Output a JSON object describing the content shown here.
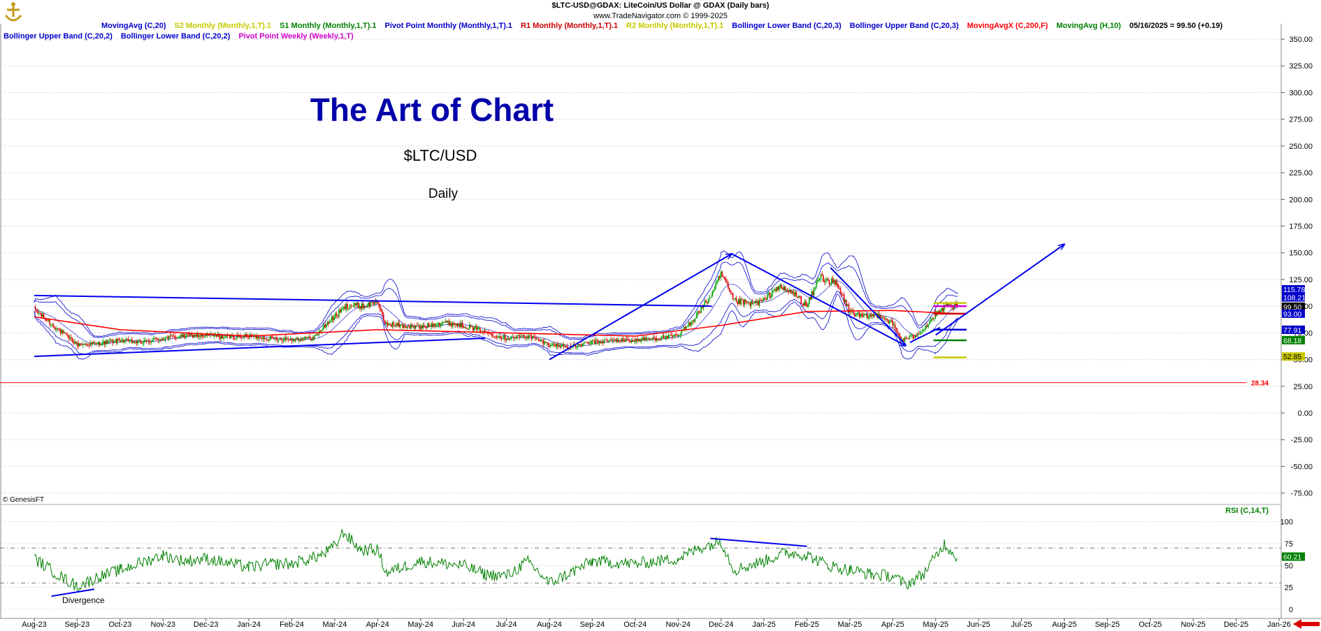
{
  "header": {
    "title": "$LTC-USD@GDAX:  LiteCoin/US Dollar @ GDAX  (Daily bars)",
    "subtitle": "www.TradeNavigator.com © 1999-2025"
  },
  "legend_row1": [
    {
      "text": "MovingAvg (C,20)",
      "color": "#0000cc"
    },
    {
      "text": "S2 Monthly (Monthly,1,T).1",
      "color": "#c8c800"
    },
    {
      "text": "S1 Monthly (Monthly,1,T).1",
      "color": "#008000"
    },
    {
      "text": "Pivot Point Monthly (Monthly,1,T).1",
      "color": "#0000cc"
    },
    {
      "text": "R1 Monthly (Monthly,1,T).1",
      "color": "#cc0000"
    },
    {
      "text": "R2 Monthly (Monthly,1,T).1",
      "color": "#c8c800"
    },
    {
      "text": "Bollinger Lower Band (C,20,3)",
      "color": "#0000cc"
    },
    {
      "text": "Bollinger Upper Band (C,20,3)",
      "color": "#0000cc"
    },
    {
      "text": "MovingAvgX (C,200,F)",
      "color": "#ff0000"
    },
    {
      "text": "MovingAvg (H,10)",
      "color": "#008000"
    },
    {
      "text": "05/16/2025 = 99.50 (+0.19)",
      "color": "#000000"
    }
  ],
  "legend_row2": [
    {
      "text": "Bollinger Upper Band (C,20,2)",
      "color": "#0000cc"
    },
    {
      "text": "Bollinger Lower Band (C,20,2)",
      "color": "#0000cc"
    },
    {
      "text": "Pivot Point Weekly (Weekly,1,T)",
      "color": "#cc00cc"
    }
  ],
  "annotations": {
    "main_title": "The Art of Chart",
    "symbol": "$LTC/USD",
    "timeframe": "Daily",
    "divergence": "Divergence",
    "copyright": "© GenesisFT",
    "support_label": "28.34",
    "rsi_label": "RSI (C,14,T)"
  },
  "colors": {
    "up_bar": "#00a000",
    "down_bar": "#e00000",
    "bollinger": "#0000cc",
    "ma200": "#ff0000",
    "trendline": "#0000ee",
    "rsi": "#008000",
    "support": "#ff0000"
  },
  "chart_data": {
    "type": "candlestick",
    "x_categories": [
      "Aug-23",
      "Sep-23",
      "Oct-23",
      "Nov-23",
      "Dec-23",
      "Jan-24",
      "Feb-24",
      "Mar-24",
      "Apr-24",
      "May-24",
      "Jun-24",
      "Jul-24",
      "Aug-24",
      "Sep-24",
      "Oct-24",
      "Nov-24",
      "Dec-24",
      "Jan-25",
      "Feb-25",
      "Mar-25",
      "Apr-25",
      "May-25",
      "Jun-25",
      "Jul-25",
      "Aug-25",
      "Sep-25",
      "Oct-25",
      "Nov-25",
      "Dec-25",
      "Jan-26"
    ],
    "price_axis": {
      "ylim": [
        -87,
        365
      ],
      "ticks": [
        "350.00",
        "325.00",
        "300.00",
        "275.00",
        "250.00",
        "225.00",
        "200.00",
        "175.00",
        "150.00",
        "125.00",
        "100.00",
        "75.00",
        "50.00",
        "25.00",
        "0.00",
        "-25.00",
        "-50.00",
        "-75.00"
      ]
    },
    "rsi_axis": {
      "ylim": [
        0,
        100
      ],
      "ticks": [
        "100",
        "75",
        "50",
        "25",
        "0"
      ],
      "reference_lines": [
        70,
        30
      ]
    },
    "price_anchors": [
      [
        "Aug-23",
        0.0,
        97
      ],
      [
        "Aug-23",
        0.5,
        80
      ],
      [
        "Sep-23",
        0.0,
        64
      ],
      [
        "Sep-23",
        0.5,
        65
      ],
      [
        "Oct-23",
        0.0,
        68
      ],
      [
        "Oct-23",
        0.5,
        66
      ],
      [
        "Nov-23",
        0.0,
        70
      ],
      [
        "Nov-23",
        0.5,
        72
      ],
      [
        "Dec-23",
        0.0,
        73
      ],
      [
        "Dec-23",
        0.5,
        71
      ],
      [
        "Jan-24",
        0.0,
        72
      ],
      [
        "Jan-24",
        0.5,
        70
      ],
      [
        "Feb-24",
        0.0,
        69
      ],
      [
        "Feb-24",
        0.5,
        70
      ],
      [
        "Feb-24",
        0.85,
        85
      ],
      [
        "Mar-24",
        0.3,
        101
      ],
      [
        "Mar-24",
        0.7,
        100
      ],
      [
        "Apr-24",
        0.0,
        105
      ],
      [
        "Apr-24",
        0.15,
        84
      ],
      [
        "Apr-24",
        0.5,
        82
      ],
      [
        "May-24",
        0.0,
        80
      ],
      [
        "May-24",
        0.5,
        85
      ],
      [
        "Jun-24",
        0.0,
        82
      ],
      [
        "Jun-24",
        0.5,
        76
      ],
      [
        "Jul-24",
        0.0,
        70
      ],
      [
        "Jul-24",
        0.5,
        72
      ],
      [
        "Aug-24",
        0.0,
        64
      ],
      [
        "Aug-24",
        0.5,
        62
      ],
      [
        "Sep-24",
        0.0,
        66
      ],
      [
        "Sep-24",
        0.5,
        68
      ],
      [
        "Oct-24",
        0.0,
        68
      ],
      [
        "Oct-24",
        0.5,
        70
      ],
      [
        "Nov-24",
        0.0,
        72
      ],
      [
        "Nov-24",
        0.4,
        90
      ],
      [
        "Nov-24",
        0.8,
        112
      ],
      [
        "Dec-24",
        0.0,
        130
      ],
      [
        "Dec-24",
        0.3,
        105
      ],
      [
        "Dec-24",
        0.7,
        102
      ],
      [
        "Jan-25",
        0.0,
        105
      ],
      [
        "Jan-25",
        0.3,
        118
      ],
      [
        "Jan-25",
        0.7,
        112
      ],
      [
        "Feb-25",
        0.0,
        100
      ],
      [
        "Feb-25",
        0.3,
        128
      ],
      [
        "Feb-25",
        0.7,
        120
      ],
      [
        "Mar-25",
        0.0,
        95
      ],
      [
        "Mar-25",
        0.3,
        90
      ],
      [
        "Mar-25",
        0.7,
        92
      ],
      [
        "Apr-25",
        0.0,
        83
      ],
      [
        "Apr-25",
        0.2,
        68
      ],
      [
        "Apr-25",
        0.5,
        72
      ],
      [
        "Apr-25",
        0.8,
        82
      ],
      [
        "May-25",
        0.0,
        92
      ],
      [
        "May-25",
        0.25,
        100
      ],
      [
        "May-25",
        0.5,
        99.5
      ]
    ],
    "ma200_anchors": [
      [
        "Aug-23",
        0.0,
        90
      ],
      [
        "Oct-23",
        0.0,
        78
      ],
      [
        "Jan-24",
        0.0,
        72
      ],
      [
        "Apr-24",
        0.0,
        78
      ],
      [
        "Jul-24",
        0.0,
        75
      ],
      [
        "Oct-24",
        0.0,
        72
      ],
      [
        "Dec-24",
        0.0,
        82
      ],
      [
        "Feb-25",
        0.0,
        95
      ],
      [
        "Apr-25",
        0.0,
        96
      ],
      [
        "May-25",
        0.5,
        93
      ]
    ],
    "rsi_anchors": [
      [
        "Aug-23",
        0.0,
        58
      ],
      [
        "Aug-23",
        0.6,
        38
      ],
      [
        "Sep-23",
        0.0,
        26
      ],
      [
        "Sep-23",
        0.5,
        37
      ],
      [
        "Oct-23",
        0.0,
        45
      ],
      [
        "Nov-23",
        0.0,
        62
      ],
      [
        "Nov-23",
        0.5,
        55
      ],
      [
        "Dec-23",
        0.0,
        58
      ],
      [
        "Jan-24",
        0.0,
        48
      ],
      [
        "Jan-24",
        0.5,
        52
      ],
      [
        "Feb-24",
        0.0,
        52
      ],
      [
        "Feb-24",
        0.7,
        62
      ],
      [
        "Mar-24",
        0.0,
        72
      ],
      [
        "Mar-24",
        0.2,
        88
      ],
      [
        "Mar-24",
        0.6,
        68
      ],
      [
        "Apr-24",
        0.0,
        68
      ],
      [
        "Apr-24",
        0.2,
        42
      ],
      [
        "May-24",
        0.0,
        55
      ],
      [
        "Jun-24",
        0.0,
        50
      ],
      [
        "Jun-24",
        0.5,
        40
      ],
      [
        "Jul-24",
        0.0,
        38
      ],
      [
        "Jul-24",
        0.5,
        55
      ],
      [
        "Aug-24",
        0.0,
        30
      ],
      [
        "Aug-24",
        0.5,
        42
      ],
      [
        "Sep-24",
        0.0,
        55
      ],
      [
        "Oct-24",
        0.0,
        52
      ],
      [
        "Nov-24",
        0.0,
        58
      ],
      [
        "Nov-24",
        0.5,
        70
      ],
      [
        "Dec-24",
        0.0,
        78
      ],
      [
        "Dec-24",
        0.3,
        45
      ],
      [
        "Jan-25",
        0.0,
        55
      ],
      [
        "Jan-25",
        0.5,
        65
      ],
      [
        "Feb-25",
        0.0,
        62
      ],
      [
        "Feb-25",
        0.5,
        50
      ],
      [
        "Mar-25",
        0.0,
        45
      ],
      [
        "Mar-25",
        0.5,
        40
      ],
      [
        "Apr-25",
        0.0,
        38
      ],
      [
        "Apr-25",
        0.3,
        28
      ],
      [
        "Apr-25",
        0.7,
        40
      ],
      [
        "May-25",
        0.0,
        60
      ],
      [
        "May-25",
        0.2,
        75
      ],
      [
        "May-25",
        0.5,
        60
      ]
    ],
    "trendlines": [
      {
        "from": [
          "Aug-23",
          0.0,
          110
        ],
        "to": [
          "Nov-24",
          0.8,
          100
        ]
      },
      {
        "from": [
          "Aug-23",
          0.0,
          53
        ],
        "to": [
          "Jun-24",
          0.5,
          70
        ]
      },
      {
        "from": [
          "Aug-24",
          0.0,
          50
        ],
        "to": [
          "Dec-24",
          0.25,
          149
        ],
        "arrow": true
      },
      {
        "from": [
          "Dec-24",
          0.25,
          149
        ],
        "to": [
          "Apr-25",
          0.3,
          63
        ],
        "arrow": true
      },
      {
        "from": [
          "Feb-25",
          0.55,
          136
        ],
        "to": [
          "Apr-25",
          0.3,
          64
        ],
        "arrow": false
      },
      {
        "from": [
          "Apr-25",
          0.4,
          66
        ],
        "to": [
          "May-25",
          0.1,
          80
        ],
        "arrow": false
      },
      {
        "from": [
          "May-25",
          0.0,
          73
        ],
        "to": [
          "Aug-25",
          0.0,
          158
        ],
        "arrow": true
      }
    ],
    "rsi_trendlines": [
      {
        "from": [
          "Aug-23",
          0.4,
          15
        ],
        "to": [
          "Sep-23",
          0.4,
          23
        ]
      },
      {
        "from": [
          "Nov-24",
          0.75,
          81
        ],
        "to": [
          "Feb-25",
          0.0,
          72
        ]
      }
    ],
    "pivot_levels": [
      {
        "name": "R2 Monthly",
        "value": 103,
        "color": "#c8c800"
      },
      {
        "name": "Pivot Point Weekly",
        "value": 100,
        "color": "#cc00cc"
      },
      {
        "name": "R1 Monthly",
        "value": 93,
        "color": "#cc0000"
      },
      {
        "name": "Pivot Point Monthly",
        "value": 78,
        "color": "#0000cc"
      },
      {
        "name": "S1 Monthly",
        "value": 68,
        "color": "#008000"
      },
      {
        "name": "S2 Monthly",
        "value": 52,
        "color": "#c8c800"
      }
    ],
    "support_line": {
      "value": 28.34,
      "color": "#ff0000"
    },
    "price_badges": [
      {
        "text": "115.78",
        "value": 115.78,
        "bg": "#0000cc",
        "fg": "#ffffff"
      },
      {
        "text": "108.21",
        "value": 108.21,
        "bg": "#0000cc",
        "fg": "#ffffff"
      },
      {
        "text": "99.50",
        "value": 99.5,
        "bg": "#000000",
        "fg": "#ffffff"
      },
      {
        "text": "93.00",
        "value": 93.0,
        "bg": "#0000cc",
        "fg": "#ffffff"
      },
      {
        "text": "77.91",
        "value": 77.91,
        "bg": "#0000cc",
        "fg": "#ffffff"
      },
      {
        "text": "68.18",
        "value": 68.18,
        "bg": "#008000",
        "fg": "#ffffff"
      },
      {
        "text": "52.85",
        "value": 52.85,
        "bg": "#c8c800",
        "fg": "#000000"
      }
    ],
    "rsi_badge": {
      "text": "60.21",
      "value": 60.21,
      "bg": "#008000",
      "fg": "#ffffff"
    }
  }
}
